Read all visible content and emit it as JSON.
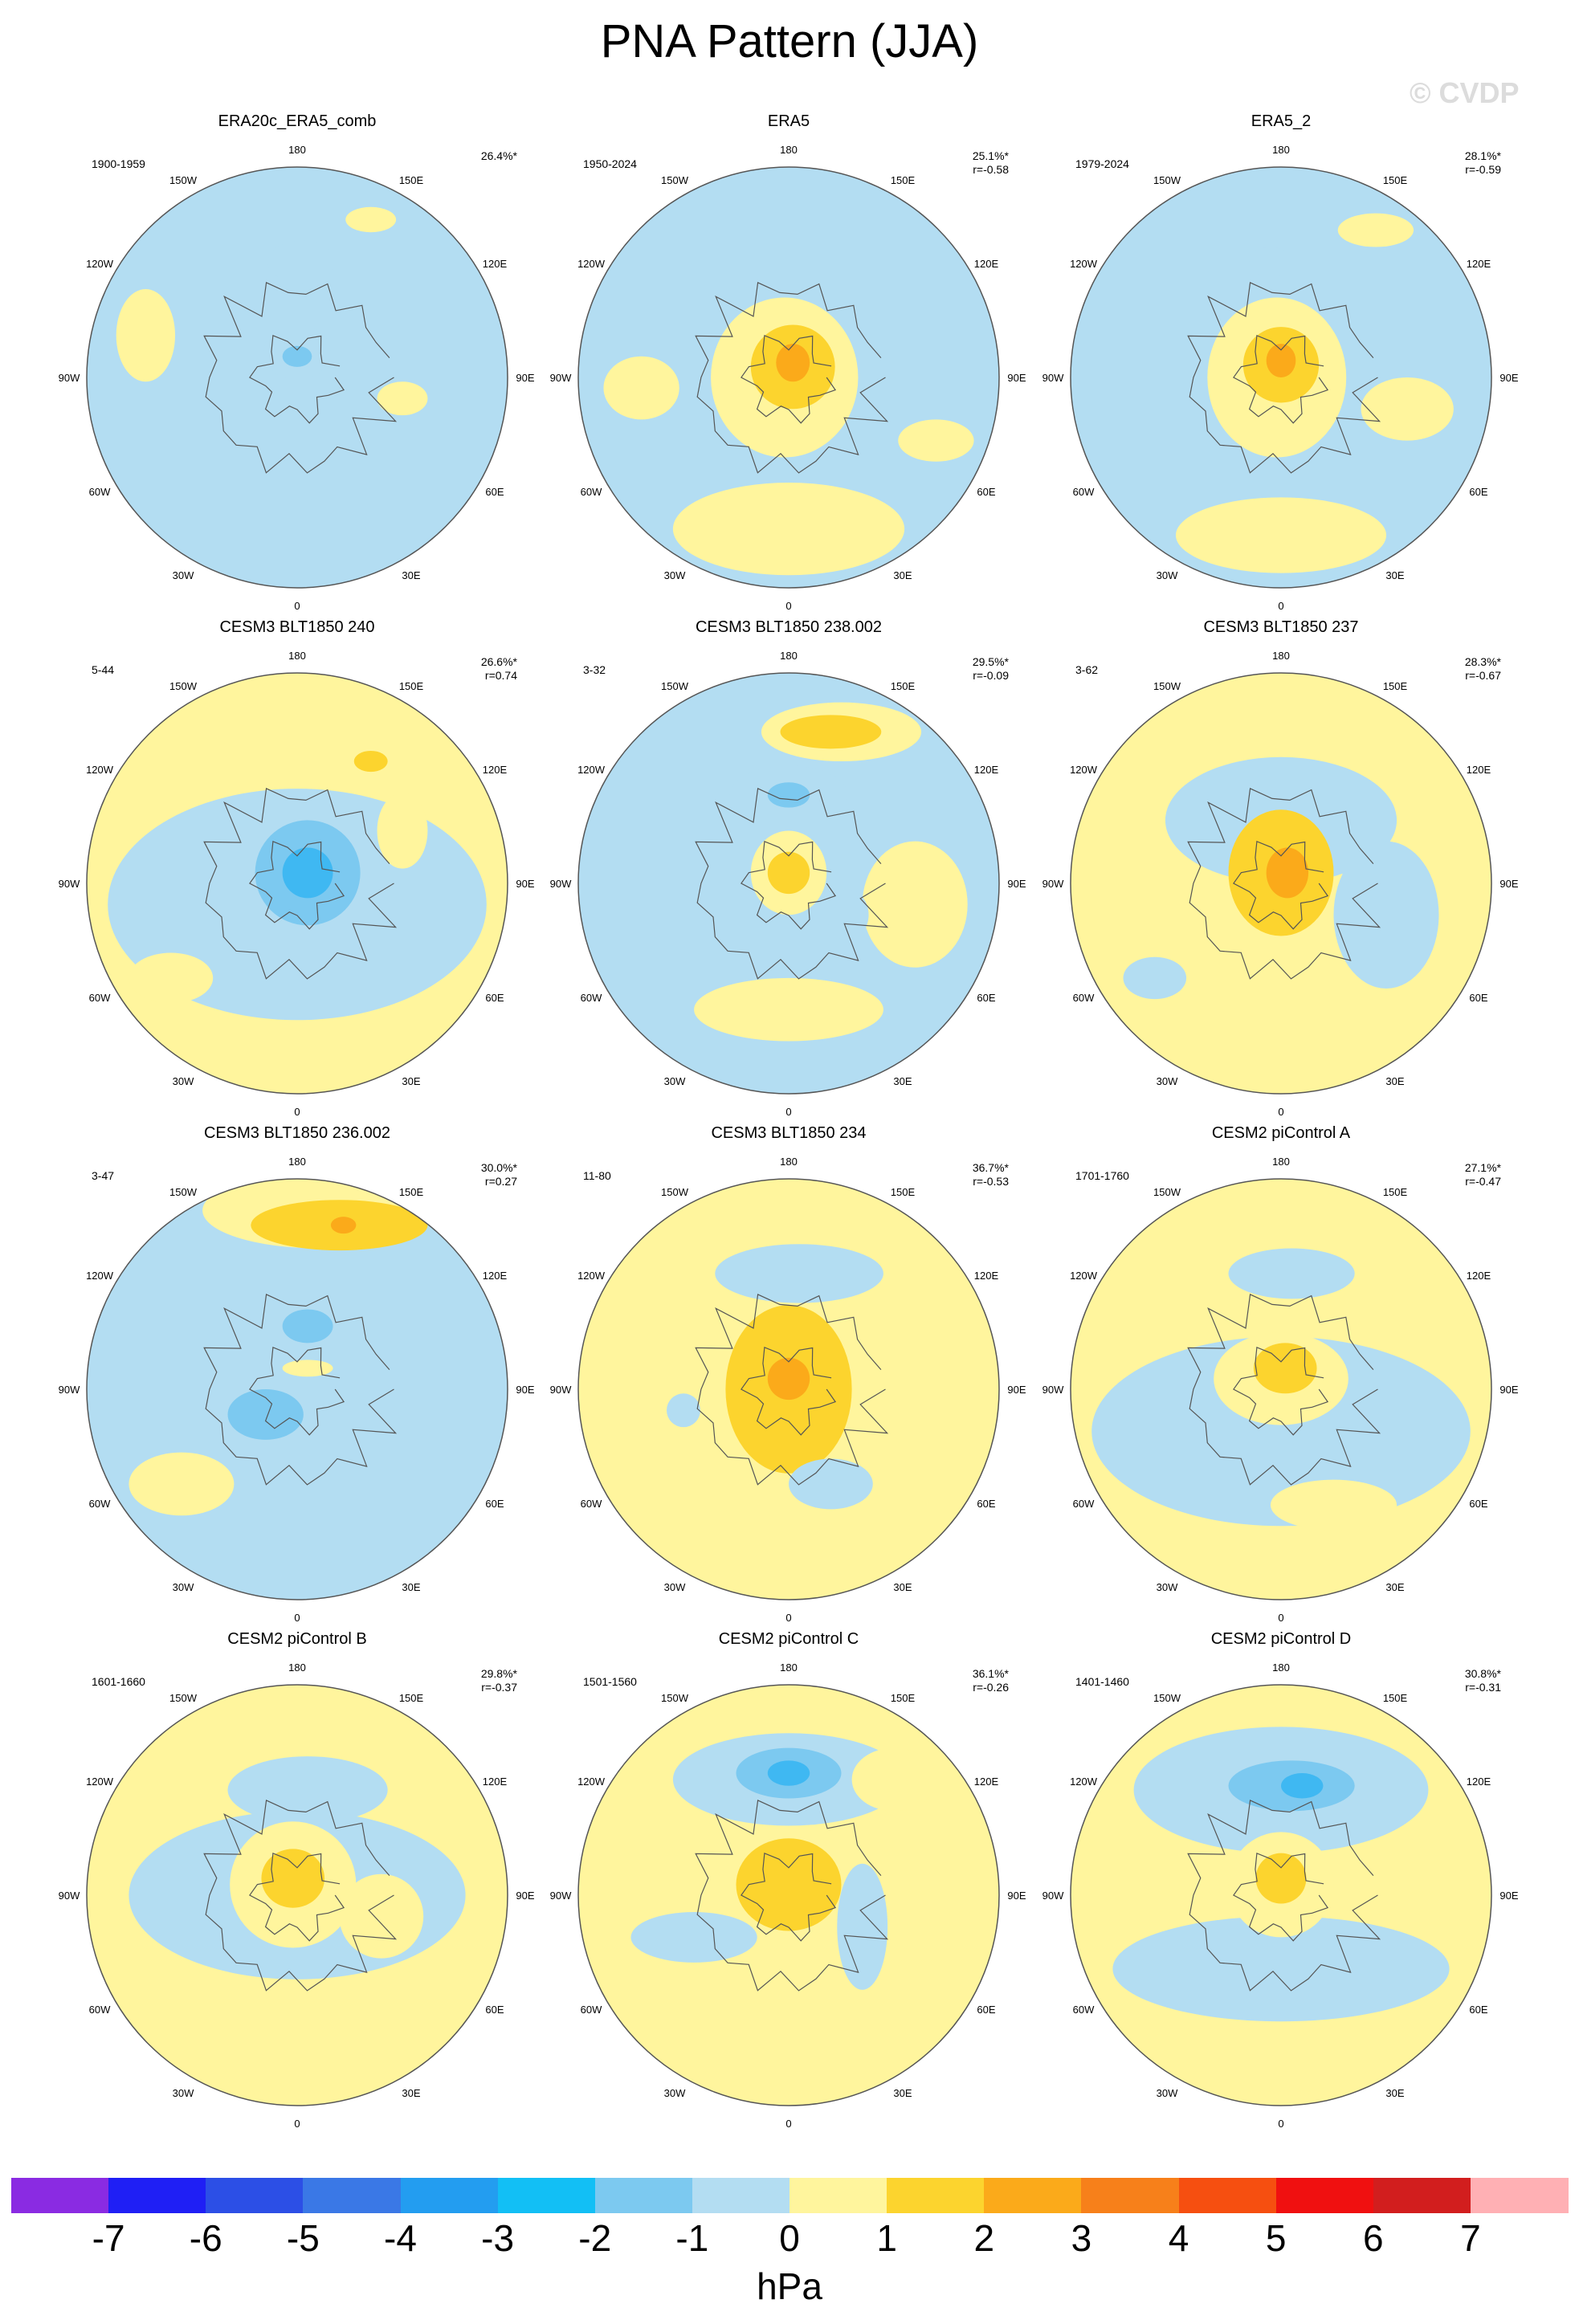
{
  "title": "PNA Pattern (JJA)",
  "watermark": "© CVDP",
  "colors": {
    "pos1": "#FFF59D",
    "pos2": "#FCD42E",
    "pos3": "#FBAA1A",
    "pos4": "#F7801A",
    "neg1": "#B3DDF2",
    "neg2": "#7CC9F0",
    "neg3": "#3FB8F2",
    "neg4": "#239DF0",
    "coast": "#555555",
    "ring": "#555555"
  },
  "lon_labels": [
    "180",
    "150E",
    "120E",
    "90E",
    "60E",
    "30E",
    "0",
    "30W",
    "60W",
    "90W",
    "120W",
    "150W"
  ],
  "chart_data": {
    "type": "heatmap",
    "projection": "north polar stereographic",
    "variable": "PNA pattern sea level pressure regression",
    "units": "hPa",
    "panels": [
      {
        "title": "ERA20c_ERA5_comb",
        "years": "1900-1959",
        "pct": "26.4%*",
        "r": "",
        "base": "neg",
        "blobs": [
          {
            "x": 0.02,
            "y": -0.55,
            "rx": 0.16,
            "ry": 0.1,
            "level": -1
          },
          {
            "x": 0.0,
            "y": -0.12,
            "rx": 0.16,
            "ry": 0.13,
            "level": -1
          },
          {
            "x": 0.0,
            "y": -0.1,
            "rx": 0.07,
            "ry": 0.05,
            "level": -2
          },
          {
            "x": 0.35,
            "y": -0.75,
            "rx": 0.12,
            "ry": 0.06,
            "level": 1
          },
          {
            "x": -0.72,
            "y": -0.2,
            "rx": 0.14,
            "ry": 0.22,
            "level": 1
          },
          {
            "x": 0.5,
            "y": 0.1,
            "rx": 0.12,
            "ry": 0.08,
            "level": 1
          }
        ]
      },
      {
        "title": "ERA5",
        "years": "1950-2024",
        "pct": "25.1%*",
        "r": "r=-0.58",
        "base": "neg",
        "blobs": [
          {
            "x": -0.02,
            "y": 0.0,
            "rx": 0.35,
            "ry": 0.38,
            "level": 1
          },
          {
            "x": 0.02,
            "y": -0.05,
            "rx": 0.2,
            "ry": 0.2,
            "level": 2
          },
          {
            "x": 0.02,
            "y": -0.07,
            "rx": 0.08,
            "ry": 0.09,
            "level": 3
          },
          {
            "x": 0.0,
            "y": 0.72,
            "rx": 0.55,
            "ry": 0.22,
            "level": 1
          },
          {
            "x": -0.7,
            "y": 0.05,
            "rx": 0.18,
            "ry": 0.15,
            "level": 1
          },
          {
            "x": 0.7,
            "y": 0.3,
            "rx": 0.18,
            "ry": 0.1,
            "level": 1
          }
        ]
      },
      {
        "title": "ERA5_2",
        "years": "1979-2024",
        "pct": "28.1%*",
        "r": "r=-0.59",
        "base": "neg",
        "blobs": [
          {
            "x": -0.02,
            "y": 0.0,
            "rx": 0.33,
            "ry": 0.38,
            "level": 1
          },
          {
            "x": 0.0,
            "y": -0.06,
            "rx": 0.18,
            "ry": 0.18,
            "level": 2
          },
          {
            "x": 0.0,
            "y": -0.08,
            "rx": 0.07,
            "ry": 0.08,
            "level": 3
          },
          {
            "x": -0.05,
            "y": -0.55,
            "rx": 0.1,
            "ry": 0.07,
            "level": -1
          },
          {
            "x": 0.45,
            "y": -0.7,
            "rx": 0.18,
            "ry": 0.08,
            "level": 1
          },
          {
            "x": 0.6,
            "y": 0.15,
            "rx": 0.22,
            "ry": 0.15,
            "level": 1
          },
          {
            "x": 0.0,
            "y": 0.75,
            "rx": 0.5,
            "ry": 0.18,
            "level": 1
          }
        ]
      },
      {
        "title": "CESM3 BLT1850 240",
        "years": "5-44",
        "pct": "26.6%*",
        "r": "r=0.74",
        "base": "pos",
        "blobs": [
          {
            "x": 0.0,
            "y": 0.1,
            "rx": 0.9,
            "ry": 0.55,
            "level": -1
          },
          {
            "x": 0.05,
            "y": -0.05,
            "rx": 0.25,
            "ry": 0.25,
            "level": -2
          },
          {
            "x": 0.05,
            "y": -0.05,
            "rx": 0.12,
            "ry": 0.12,
            "level": -3
          },
          {
            "x": 0.5,
            "y": -0.25,
            "rx": 0.12,
            "ry": 0.18,
            "level": 1
          },
          {
            "x": 0.35,
            "y": -0.58,
            "rx": 0.08,
            "ry": 0.05,
            "level": 2
          },
          {
            "x": -0.6,
            "y": 0.45,
            "rx": 0.2,
            "ry": 0.12,
            "level": 1
          }
        ]
      },
      {
        "title": "CESM3 BLT1850 238.002",
        "years": "3-32",
        "pct": "29.5%*",
        "r": "r=-0.09",
        "base": "neg",
        "blobs": [
          {
            "x": 0.25,
            "y": -0.72,
            "rx": 0.38,
            "ry": 0.14,
            "level": 1
          },
          {
            "x": 0.2,
            "y": -0.72,
            "rx": 0.24,
            "ry": 0.08,
            "level": 2
          },
          {
            "x": 0.0,
            "y": -0.42,
            "rx": 0.28,
            "ry": 0.14,
            "level": -1
          },
          {
            "x": 0.0,
            "y": -0.42,
            "rx": 0.1,
            "ry": 0.06,
            "level": -2
          },
          {
            "x": 0.0,
            "y": -0.05,
            "rx": 0.18,
            "ry": 0.2,
            "level": 1
          },
          {
            "x": 0.0,
            "y": -0.05,
            "rx": 0.1,
            "ry": 0.1,
            "level": 2
          },
          {
            "x": 0.6,
            "y": 0.1,
            "rx": 0.25,
            "ry": 0.3,
            "level": 1
          },
          {
            "x": 0.0,
            "y": 0.6,
            "rx": 0.45,
            "ry": 0.15,
            "level": 1
          },
          {
            "x": 0.28,
            "y": 0.15,
            "rx": 0.1,
            "ry": 0.12,
            "level": -1
          }
        ]
      },
      {
        "title": "CESM3 BLT1850 237",
        "years": "3-62",
        "pct": "28.3%*",
        "r": "r=-0.67",
        "base": "pos",
        "blobs": [
          {
            "x": 0.0,
            "y": -0.3,
            "rx": 0.55,
            "ry": 0.3,
            "level": -1
          },
          {
            "x": 0.5,
            "y": 0.15,
            "rx": 0.25,
            "ry": 0.35,
            "level": -1
          },
          {
            "x": 0.0,
            "y": -0.05,
            "rx": 0.25,
            "ry": 0.3,
            "level": 2
          },
          {
            "x": 0.03,
            "y": -0.05,
            "rx": 0.1,
            "ry": 0.12,
            "level": 3
          },
          {
            "x": -0.6,
            "y": 0.45,
            "rx": 0.15,
            "ry": 0.1,
            "level": -1
          }
        ]
      },
      {
        "title": "CESM3 BLT1850 236.002",
        "years": "3-47",
        "pct": "30.0%*",
        "r": "r=0.27",
        "base": "neg",
        "blobs": [
          {
            "x": 0.1,
            "y": -0.85,
            "rx": 0.55,
            "ry": 0.18,
            "level": 1
          },
          {
            "x": 0.2,
            "y": -0.78,
            "rx": 0.42,
            "ry": 0.12,
            "level": 2
          },
          {
            "x": 0.22,
            "y": -0.78,
            "rx": 0.06,
            "ry": 0.04,
            "level": 3
          },
          {
            "x": 0.05,
            "y": -0.3,
            "rx": 0.12,
            "ry": 0.08,
            "level": -2
          },
          {
            "x": -0.15,
            "y": 0.12,
            "rx": 0.18,
            "ry": 0.12,
            "level": -2
          },
          {
            "x": -0.55,
            "y": 0.45,
            "rx": 0.25,
            "ry": 0.15,
            "level": 1
          },
          {
            "x": 0.05,
            "y": -0.1,
            "rx": 0.12,
            "ry": 0.04,
            "level": 1
          }
        ]
      },
      {
        "title": "CESM3 BLT1850 234",
        "years": "11-80",
        "pct": "36.7%*",
        "r": "r=-0.53",
        "base": "pos",
        "blobs": [
          {
            "x": 0.05,
            "y": -0.55,
            "rx": 0.4,
            "ry": 0.14,
            "level": -1
          },
          {
            "x": 0.0,
            "y": 0.0,
            "rx": 0.3,
            "ry": 0.4,
            "level": 2
          },
          {
            "x": 0.0,
            "y": -0.05,
            "rx": 0.1,
            "ry": 0.1,
            "level": 3
          },
          {
            "x": 0.2,
            "y": 0.45,
            "rx": 0.2,
            "ry": 0.12,
            "level": -1
          },
          {
            "x": -0.5,
            "y": 0.1,
            "rx": 0.08,
            "ry": 0.08,
            "level": -1
          }
        ]
      },
      {
        "title": "CESM2 piControl A",
        "years": "1701-1760",
        "pct": "27.1%*",
        "r": "r=-0.47",
        "base": "pos",
        "blobs": [
          {
            "x": 0.0,
            "y": 0.2,
            "rx": 0.9,
            "ry": 0.45,
            "level": -1
          },
          {
            "x": 0.05,
            "y": -0.55,
            "rx": 0.3,
            "ry": 0.12,
            "level": -1
          },
          {
            "x": 0.0,
            "y": -0.05,
            "rx": 0.32,
            "ry": 0.22,
            "level": 1
          },
          {
            "x": 0.02,
            "y": -0.1,
            "rx": 0.15,
            "ry": 0.12,
            "level": 2
          },
          {
            "x": 0.7,
            "y": -0.4,
            "rx": 0.18,
            "ry": 0.15,
            "level": 1
          },
          {
            "x": 0.25,
            "y": 0.55,
            "rx": 0.3,
            "ry": 0.12,
            "level": 1
          }
        ]
      },
      {
        "title": "CESM2 piControl B",
        "years": "1601-1660",
        "pct": "29.8%*",
        "r": "r=-0.37",
        "base": "pos",
        "blobs": [
          {
            "x": 0.0,
            "y": 0.0,
            "rx": 0.8,
            "ry": 0.4,
            "level": -1
          },
          {
            "x": 0.05,
            "y": -0.5,
            "rx": 0.38,
            "ry": 0.16,
            "level": -1
          },
          {
            "x": -0.02,
            "y": -0.05,
            "rx": 0.3,
            "ry": 0.3,
            "level": 1
          },
          {
            "x": -0.02,
            "y": -0.08,
            "rx": 0.15,
            "ry": 0.14,
            "level": 2
          },
          {
            "x": 0.4,
            "y": 0.1,
            "rx": 0.2,
            "ry": 0.2,
            "level": 1
          }
        ]
      },
      {
        "title": "CESM2 piControl C",
        "years": "1501-1560",
        "pct": "36.1%*",
        "r": "r=-0.26",
        "base": "pos",
        "blobs": [
          {
            "x": 0.0,
            "y": -0.55,
            "rx": 0.55,
            "ry": 0.22,
            "level": -1
          },
          {
            "x": 0.0,
            "y": -0.58,
            "rx": 0.25,
            "ry": 0.12,
            "level": -2
          },
          {
            "x": 0.0,
            "y": -0.58,
            "rx": 0.1,
            "ry": 0.06,
            "level": -3
          },
          {
            "x": 0.5,
            "y": -0.55,
            "rx": 0.2,
            "ry": 0.15,
            "level": 1
          },
          {
            "x": 0.35,
            "y": 0.15,
            "rx": 0.12,
            "ry": 0.3,
            "level": -1
          },
          {
            "x": 0.0,
            "y": -0.05,
            "rx": 0.25,
            "ry": 0.22,
            "level": 2
          },
          {
            "x": -0.45,
            "y": 0.2,
            "rx": 0.3,
            "ry": 0.12,
            "level": -1
          }
        ]
      },
      {
        "title": "CESM2 piControl D",
        "years": "1401-1460",
        "pct": "30.8%*",
        "r": "r=-0.31",
        "base": "pos",
        "blobs": [
          {
            "x": 0.0,
            "y": -0.5,
            "rx": 0.7,
            "ry": 0.3,
            "level": -1
          },
          {
            "x": 0.05,
            "y": -0.52,
            "rx": 0.3,
            "ry": 0.12,
            "level": -2
          },
          {
            "x": 0.1,
            "y": -0.52,
            "rx": 0.1,
            "ry": 0.06,
            "level": -3
          },
          {
            "x": 0.0,
            "y": 0.35,
            "rx": 0.8,
            "ry": 0.25,
            "level": -1
          },
          {
            "x": 0.0,
            "y": -0.05,
            "rx": 0.25,
            "ry": 0.25,
            "level": 1
          },
          {
            "x": 0.0,
            "y": -0.08,
            "rx": 0.12,
            "ry": 0.12,
            "level": 2
          }
        ]
      }
    ],
    "colorbar": {
      "ticks": [
        "-7",
        "-6",
        "-5",
        "-4",
        "-3",
        "-2",
        "-1",
        "0",
        "1",
        "2",
        "3",
        "4",
        "5",
        "6",
        "7"
      ],
      "colors": [
        "#8A2BE2",
        "#1F1FF5",
        "#2C4FE6",
        "#3A78E6",
        "#239DF0",
        "#12BFF5",
        "#7CC9F0",
        "#B3DDF2",
        "#FFF59D",
        "#FCD42E",
        "#FBAA1A",
        "#F7801A",
        "#F64F10",
        "#F01010",
        "#D21E1E",
        "#FFB0B4"
      ],
      "units": "hPa"
    }
  }
}
